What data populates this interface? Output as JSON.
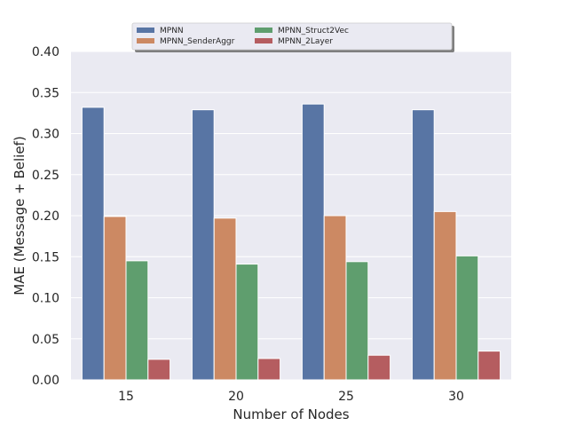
{
  "chart_data": {
    "type": "bar",
    "categories": [
      "15",
      "20",
      "25",
      "30"
    ],
    "series": [
      {
        "name": "MPNN",
        "color": "#5875a4",
        "values": [
          0.332,
          0.329,
          0.336,
          0.329
        ]
      },
      {
        "name": "MPNN_SenderAggr",
        "color": "#cc8963",
        "values": [
          0.199,
          0.197,
          0.2,
          0.205
        ]
      },
      {
        "name": "MPNN_Struct2Vec",
        "color": "#5f9e6e",
        "values": [
          0.145,
          0.141,
          0.144,
          0.151
        ]
      },
      {
        "name": "MPNN_2Layer",
        "color": "#b55d60",
        "values": [
          0.025,
          0.026,
          0.03,
          0.035
        ]
      }
    ],
    "xlabel": "Number of Nodes",
    "ylabel": "MAE (Message + Belief)",
    "ylim": [
      0,
      0.4
    ],
    "yticks": [
      "0.00",
      "0.05",
      "0.10",
      "0.15",
      "0.20",
      "0.25",
      "0.30",
      "0.35",
      "0.40"
    ],
    "grid": true,
    "legend_position": "top-center"
  }
}
